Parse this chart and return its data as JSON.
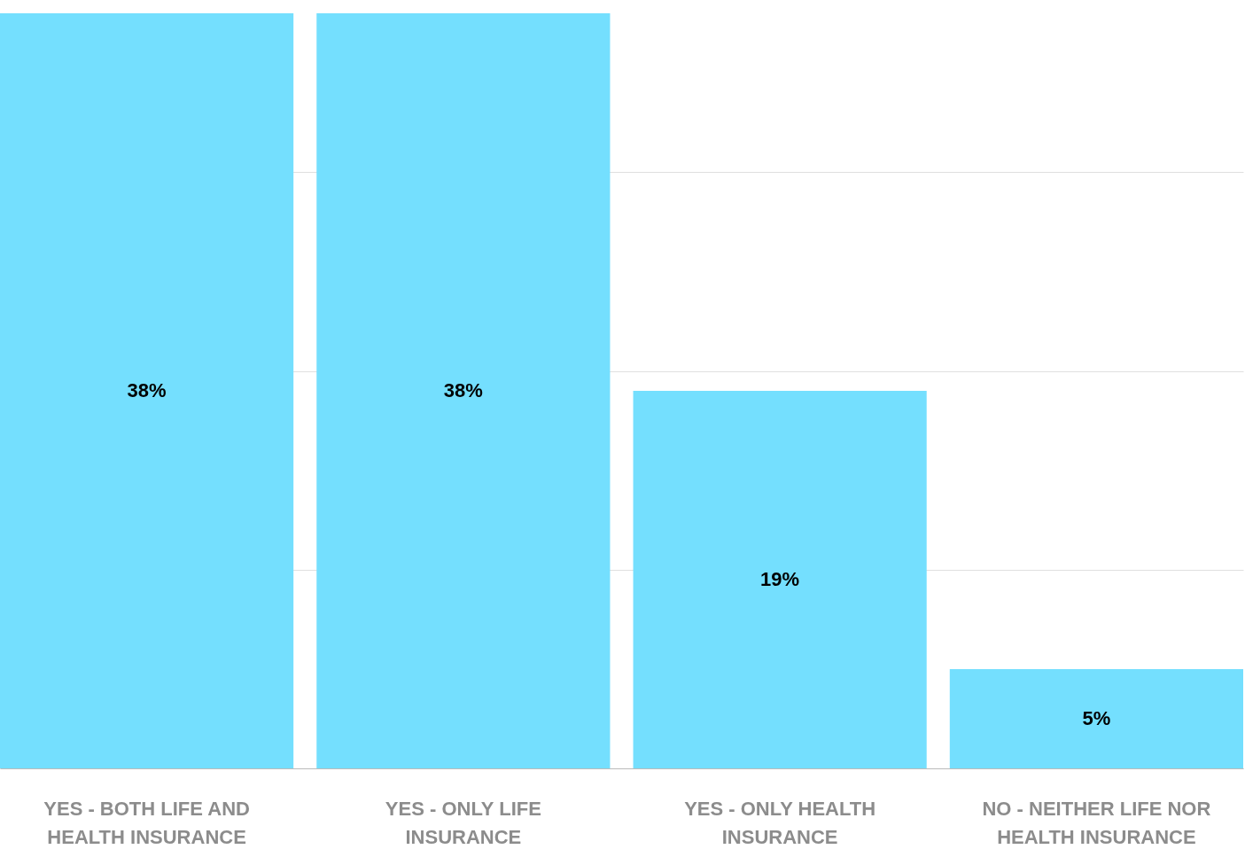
{
  "chart_data": {
    "type": "bar",
    "categories": [
      "YES - BOTH LIFE AND HEALTH INSURANCE",
      "YES - ONLY LIFE INSURANCE",
      "YES - ONLY HEALTH INSURANCE",
      "NO - NEITHER LIFE NOR HEALTH INSURANCE"
    ],
    "values": [
      38,
      38,
      19,
      5
    ],
    "color": "#74dffe",
    "ylim": [
      0,
      38
    ],
    "yticks": [
      {
        "value": 0,
        "label": null
      },
      {
        "value": 10,
        "label": null
      },
      {
        "value": 20,
        "label": null
      },
      {
        "value": 30,
        "label": null
      }
    ],
    "tick_labels": "x",
    "grid": "y",
    "data_labels": true,
    "value_labels": [
      "38%",
      "38%",
      "19%",
      "5%"
    ]
  }
}
